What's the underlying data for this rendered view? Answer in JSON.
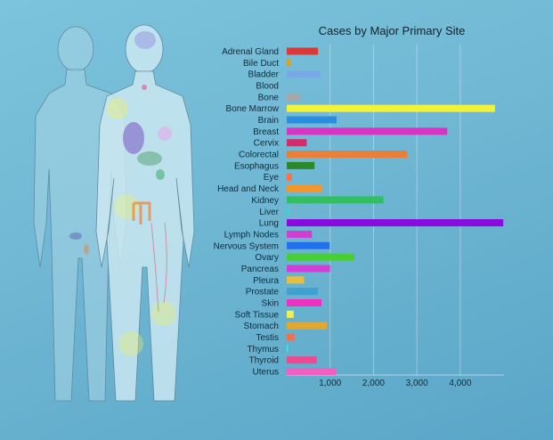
{
  "chart_data": {
    "type": "bar",
    "orientation": "horizontal",
    "title": "Cases by Major Primary Site",
    "xlabel": "",
    "ylabel": "",
    "categories": [
      "Adrenal Gland",
      "Bile Duct",
      "Bladder",
      "Blood",
      "Bone",
      "Bone Marrow",
      "Brain",
      "Breast",
      "Cervix",
      "Colorectal",
      "Esophagus",
      "Eye",
      "Head and Neck",
      "Kidney",
      "Liver",
      "Lung",
      "Lymph Nodes",
      "Nervous System",
      "Ovary",
      "Pancreas",
      "Pleura",
      "Prostate",
      "Skin",
      "Soft Tissue",
      "Stomach",
      "Testis",
      "Thymus",
      "Thyroid",
      "Uterus"
    ],
    "values": [
      720,
      90,
      770,
      0,
      300,
      4800,
      1150,
      3700,
      460,
      2780,
      640,
      120,
      820,
      2230,
      40,
      4990,
      580,
      990,
      1560,
      1000,
      400,
      720,
      800,
      160,
      930,
      180,
      30,
      690,
      1130
    ],
    "colors": [
      "#d83a3a",
      "#e0a020",
      "#78a8e8",
      "#9bb8c8",
      "#a8a8a8",
      "#f2f23a",
      "#2a8ee0",
      "#d535c2",
      "#d82a6a",
      "#e8803a",
      "#2a8a2a",
      "#ff7040",
      "#f5962a",
      "#30c060",
      "#20e0d0",
      "#8a0ae0",
      "#d040d0",
      "#2070f0",
      "#48d030",
      "#d040d8",
      "#e8c040",
      "#40a0d0",
      "#f030c0",
      "#f0f050",
      "#e0a830",
      "#f07050",
      "#40e8e0",
      "#f04890",
      "#f060c0"
    ],
    "xlim": [
      0,
      5000
    ],
    "xticks": [
      "1,000",
      "2,000",
      "3,000",
      "4,000"
    ],
    "xtick_values": [
      1000,
      2000,
      3000,
      4000
    ],
    "grid": true
  }
}
